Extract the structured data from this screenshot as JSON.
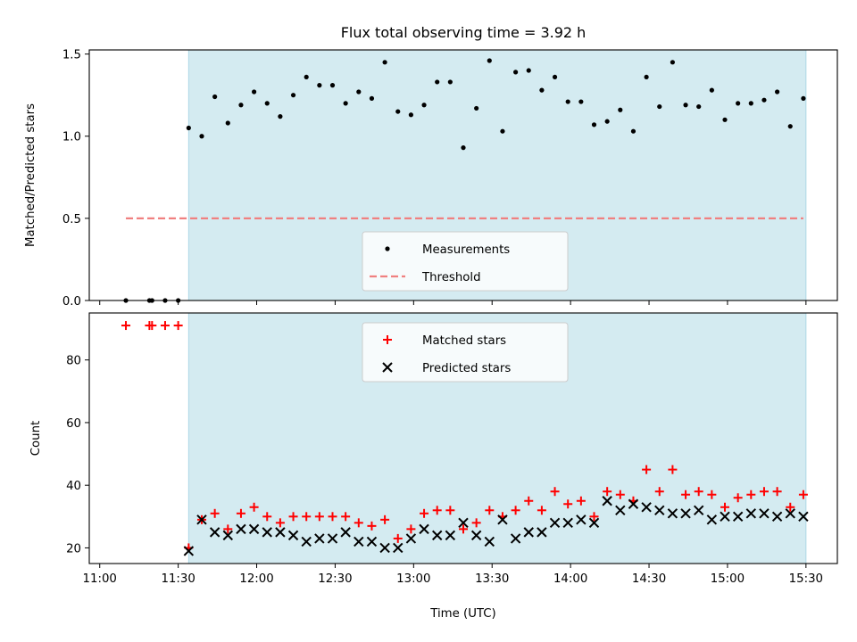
{
  "chart_data": {
    "title": "Flux total observing time = 3.92 h",
    "xlabel": "Time (UTC)",
    "x_ticks": [
      "11:00",
      "11:30",
      "12:00",
      "12:30",
      "13:00",
      "13:30",
      "14:00",
      "14:30",
      "15:00",
      "15:30"
    ],
    "x_range": [
      "10:56",
      "15:42"
    ],
    "observing_window": {
      "start": "11:34",
      "end": "15:30",
      "color": "#d4ebf1"
    },
    "panels": [
      {
        "type": "scatter",
        "ylabel": "Matched/Predicted stars",
        "ylim": [
          0,
          1.525
        ],
        "y_ticks": [
          "0.0",
          "0.5",
          "1.0",
          "1.5"
        ],
        "legend": {
          "placement": "lower-center",
          "entries": [
            "Measurements",
            "Threshold"
          ]
        },
        "series": [
          {
            "name": "Measurements",
            "color": "#000000",
            "marker": "dot",
            "points": [
              [
                "11:10",
                0.0
              ],
              [
                "11:19",
                0.0
              ],
              [
                "11:20",
                0.0
              ],
              [
                "11:25",
                0.0
              ],
              [
                "11:30",
                0.0
              ],
              [
                "11:34",
                1.05
              ],
              [
                "11:39",
                1.0
              ],
              [
                "11:44",
                1.24
              ],
              [
                "11:49",
                1.08
              ],
              [
                "11:54",
                1.19
              ],
              [
                "11:59",
                1.27
              ],
              [
                "12:04",
                1.2
              ],
              [
                "12:09",
                1.12
              ],
              [
                "12:14",
                1.25
              ],
              [
                "12:19",
                1.36
              ],
              [
                "12:24",
                1.31
              ],
              [
                "12:29",
                1.31
              ],
              [
                "12:34",
                1.2
              ],
              [
                "12:39",
                1.27
              ],
              [
                "12:44",
                1.23
              ],
              [
                "12:49",
                1.45
              ],
              [
                "12:54",
                1.15
              ],
              [
                "12:59",
                1.13
              ],
              [
                "13:04",
                1.19
              ],
              [
                "13:09",
                1.33
              ],
              [
                "13:14",
                1.33
              ],
              [
                "13:19",
                0.93
              ],
              [
                "13:24",
                1.17
              ],
              [
                "13:29",
                1.46
              ],
              [
                "13:34",
                1.03
              ],
              [
                "13:39",
                1.39
              ],
              [
                "13:44",
                1.4
              ],
              [
                "13:49",
                1.28
              ],
              [
                "13:54",
                1.36
              ],
              [
                "13:59",
                1.21
              ],
              [
                "14:04",
                1.21
              ],
              [
                "14:09",
                1.07
              ],
              [
                "14:14",
                1.09
              ],
              [
                "14:19",
                1.16
              ],
              [
                "14:24",
                1.03
              ],
              [
                "14:29",
                1.36
              ],
              [
                "14:34",
                1.18
              ],
              [
                "14:39",
                1.45
              ],
              [
                "14:44",
                1.19
              ],
              [
                "14:49",
                1.18
              ],
              [
                "14:54",
                1.28
              ],
              [
                "14:59",
                1.1
              ],
              [
                "15:04",
                1.2
              ],
              [
                "15:09",
                1.2
              ],
              [
                "15:14",
                1.22
              ],
              [
                "15:19",
                1.27
              ],
              [
                "15:24",
                1.06
              ],
              [
                "15:29",
                1.23
              ]
            ]
          },
          {
            "name": "Threshold",
            "color": "#f08080",
            "style": "dashed",
            "points": [
              [
                "11:10",
                0.5
              ],
              [
                "15:29",
                0.5
              ]
            ]
          }
        ]
      },
      {
        "type": "scatter",
        "ylabel": "Count",
        "ylim": [
          15,
          95
        ],
        "y_ticks": [
          "20",
          "40",
          "60",
          "80"
        ],
        "legend": {
          "placement": "upper-center",
          "entries": [
            "Matched stars",
            "Predicted stars"
          ]
        },
        "series": [
          {
            "name": "Matched stars",
            "color": "#ff0000",
            "marker": "plus",
            "points": [
              [
                "11:10",
                91
              ],
              [
                "11:19",
                91
              ],
              [
                "11:20",
                91
              ],
              [
                "11:25",
                91
              ],
              [
                "11:30",
                91
              ],
              [
                "11:34",
                20
              ],
              [
                "11:39",
                29
              ],
              [
                "11:44",
                31
              ],
              [
                "11:49",
                26
              ],
              [
                "11:54",
                31
              ],
              [
                "11:59",
                33
              ],
              [
                "12:04",
                30
              ],
              [
                "12:09",
                28
              ],
              [
                "12:14",
                30
              ],
              [
                "12:19",
                30
              ],
              [
                "12:24",
                30
              ],
              [
                "12:29",
                30
              ],
              [
                "12:34",
                30
              ],
              [
                "12:39",
                28
              ],
              [
                "12:44",
                27
              ],
              [
                "12:49",
                29
              ],
              [
                "12:54",
                23
              ],
              [
                "12:59",
                26
              ],
              [
                "13:04",
                31
              ],
              [
                "13:09",
                32
              ],
              [
                "13:14",
                32
              ],
              [
                "13:19",
                26
              ],
              [
                "13:24",
                28
              ],
              [
                "13:29",
                32
              ],
              [
                "13:34",
                30
              ],
              [
                "13:39",
                32
              ],
              [
                "13:44",
                35
              ],
              [
                "13:49",
                32
              ],
              [
                "13:54",
                38
              ],
              [
                "13:59",
                34
              ],
              [
                "14:04",
                35
              ],
              [
                "14:09",
                30
              ],
              [
                "14:14",
                38
              ],
              [
                "14:19",
                37
              ],
              [
                "14:24",
                35
              ],
              [
                "14:29",
                45
              ],
              [
                "14:34",
                38
              ],
              [
                "14:39",
                45
              ],
              [
                "14:44",
                37
              ],
              [
                "14:49",
                38
              ],
              [
                "14:54",
                37
              ],
              [
                "14:59",
                33
              ],
              [
                "15:04",
                36
              ],
              [
                "15:09",
                37
              ],
              [
                "15:14",
                38
              ],
              [
                "15:19",
                38
              ],
              [
                "15:24",
                33
              ],
              [
                "15:29",
                37
              ]
            ]
          },
          {
            "name": "Predicted stars",
            "color": "#000000",
            "marker": "x",
            "points": [
              [
                "11:34",
                19
              ],
              [
                "11:39",
                29
              ],
              [
                "11:44",
                25
              ],
              [
                "11:49",
                24
              ],
              [
                "11:54",
                26
              ],
              [
                "11:59",
                26
              ],
              [
                "12:04",
                25
              ],
              [
                "12:09",
                25
              ],
              [
                "12:14",
                24
              ],
              [
                "12:19",
                22
              ],
              [
                "12:24",
                23
              ],
              [
                "12:29",
                23
              ],
              [
                "12:34",
                25
              ],
              [
                "12:39",
                22
              ],
              [
                "12:44",
                22
              ],
              [
                "12:49",
                20
              ],
              [
                "12:54",
                20
              ],
              [
                "12:59",
                23
              ],
              [
                "13:04",
                26
              ],
              [
                "13:09",
                24
              ],
              [
                "13:14",
                24
              ],
              [
                "13:19",
                28
              ],
              [
                "13:24",
                24
              ],
              [
                "13:29",
                22
              ],
              [
                "13:34",
                29
              ],
              [
                "13:39",
                23
              ],
              [
                "13:44",
                25
              ],
              [
                "13:49",
                25
              ],
              [
                "13:54",
                28
              ],
              [
                "13:59",
                28
              ],
              [
                "14:04",
                29
              ],
              [
                "14:09",
                28
              ],
              [
                "14:14",
                35
              ],
              [
                "14:19",
                32
              ],
              [
                "14:24",
                34
              ],
              [
                "14:29",
                33
              ],
              [
                "14:34",
                32
              ],
              [
                "14:39",
                31
              ],
              [
                "14:44",
                31
              ],
              [
                "14:49",
                32
              ],
              [
                "14:54",
                29
              ],
              [
                "14:59",
                30
              ],
              [
                "15:04",
                30
              ],
              [
                "15:09",
                31
              ],
              [
                "15:14",
                31
              ],
              [
                "15:19",
                30
              ],
              [
                "15:24",
                31
              ],
              [
                "15:29",
                30
              ]
            ]
          }
        ]
      }
    ]
  }
}
